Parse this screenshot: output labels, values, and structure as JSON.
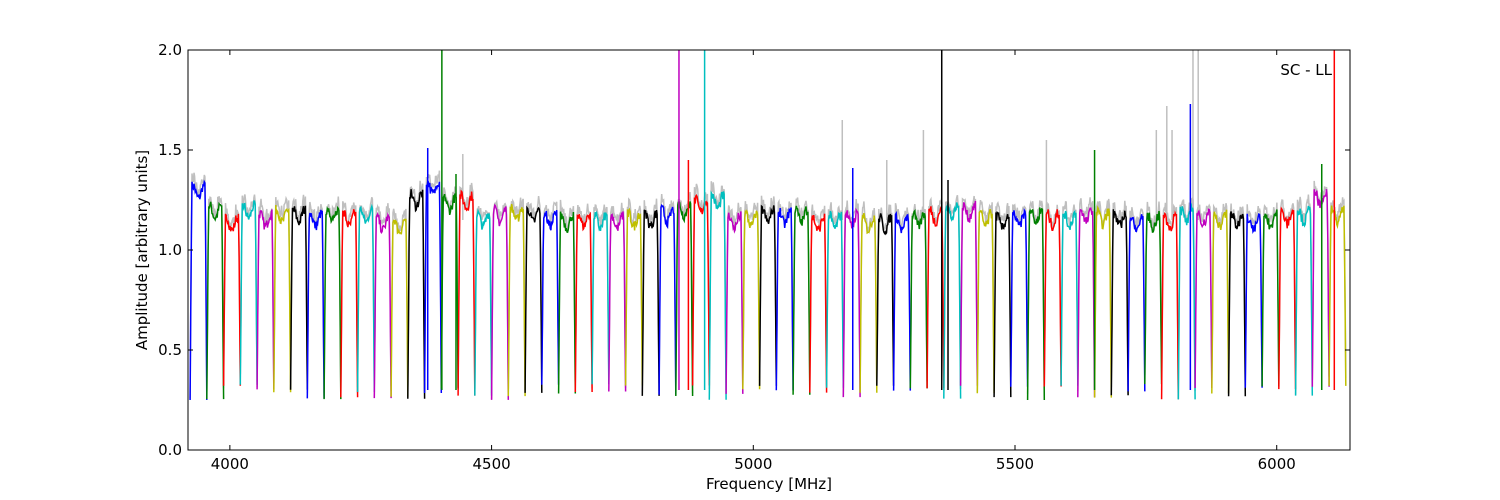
{
  "chart_data": {
    "type": "line",
    "title": "",
    "xlabel": "Frequency [MHz]",
    "ylabel": "Amplitude [arbitrary units]",
    "annotation": "SC - LL",
    "xlim": [
      3920,
      6140
    ],
    "ylim": [
      0.0,
      2.0
    ],
    "x_ticks": [
      4000,
      4500,
      5000,
      5500,
      6000
    ],
    "y_ticks": [
      0.0,
      0.5,
      1.0,
      1.5,
      2.0
    ],
    "y_tick_labels": [
      "0.0",
      "0.5",
      "1.0",
      "1.5",
      "2.0"
    ],
    "grid": false,
    "legend": "none",
    "raw_color": "#bfbfbf",
    "band_colors": [
      "#0000ff",
      "#008000",
      "#ff0000",
      "#00bfbf",
      "#bf00bf",
      "#bfbf00",
      "#000000"
    ],
    "band_width_mhz": 32,
    "band_centers_mhz": [
      3940,
      3972,
      4004,
      4036,
      4068,
      4100,
      4132,
      4164,
      4196,
      4228,
      4260,
      4292,
      4324,
      4356,
      4388,
      4420,
      4452,
      4484,
      4516,
      4548,
      4580,
      4612,
      4644,
      4676,
      4708,
      4740,
      4772,
      4804,
      4836,
      4868,
      4900,
      4932,
      4964,
      4996,
      5028,
      5060,
      5092,
      5124,
      5156,
      5188,
      5220,
      5252,
      5284,
      5316,
      5348,
      5380,
      5412,
      5444,
      5476,
      5508,
      5540,
      5572,
      5604,
      5636,
      5668,
      5700,
      5732,
      5764,
      5796,
      5828,
      5860,
      5892,
      5924,
      5956,
      5988,
      6020,
      6052,
      6084,
      6116
    ],
    "band_plateau": [
      1.32,
      1.22,
      1.16,
      1.22,
      1.18,
      1.2,
      1.2,
      1.18,
      1.2,
      1.18,
      1.2,
      1.16,
      1.15,
      1.28,
      1.34,
      1.26,
      1.27,
      1.18,
      1.2,
      1.21,
      1.2,
      1.18,
      1.17,
      1.18,
      1.17,
      1.17,
      1.18,
      1.18,
      1.2,
      1.23,
      1.25,
      1.27,
      1.17,
      1.18,
      1.2,
      1.19,
      1.2,
      1.16,
      1.17,
      1.18,
      1.16,
      1.16,
      1.16,
      1.18,
      1.2,
      1.22,
      1.22,
      1.18,
      1.17,
      1.18,
      1.2,
      1.18,
      1.18,
      1.2,
      1.19,
      1.18,
      1.16,
      1.17,
      1.17,
      1.2,
      1.19,
      1.18,
      1.18,
      1.16,
      1.18,
      1.19,
      1.2,
      1.28,
      1.2
    ],
    "spikes": [
      {
        "x": 4405,
        "y": 2.0,
        "color": "#008000"
      },
      {
        "x": 4858,
        "y": 2.0,
        "color": "#bf00bf"
      },
      {
        "x": 4907,
        "y": 2.0,
        "color": "#00bfbf"
      },
      {
        "x": 5360,
        "y": 2.0,
        "color": "#000000"
      },
      {
        "x": 6110,
        "y": 2.0,
        "color": "#ff0000"
      },
      {
        "x": 5835,
        "y": 1.73,
        "color": "#0000ff"
      },
      {
        "x": 4378,
        "y": 1.51,
        "color": "#0000ff"
      },
      {
        "x": 4876,
        "y": 1.45,
        "color": "#ff0000"
      },
      {
        "x": 5652,
        "y": 1.5,
        "color": "#008000"
      },
      {
        "x": 5190,
        "y": 1.41,
        "color": "#0000ff"
      },
      {
        "x": 6086,
        "y": 1.43,
        "color": "#008000"
      },
      {
        "x": 4432,
        "y": 1.38,
        "color": "#008000"
      },
      {
        "x": 5372,
        "y": 1.35,
        "color": "#000000"
      }
    ],
    "raw_spikes": [
      {
        "x": 5170,
        "y": 1.65
      },
      {
        "x": 5325,
        "y": 1.6
      },
      {
        "x": 5560,
        "y": 1.55
      },
      {
        "x": 5770,
        "y": 1.6
      },
      {
        "x": 5790,
        "y": 1.72
      },
      {
        "x": 5800,
        "y": 1.6
      },
      {
        "x": 5840,
        "y": 2.0
      },
      {
        "x": 5850,
        "y": 2.0
      },
      {
        "x": 5255,
        "y": 1.45
      },
      {
        "x": 4445,
        "y": 1.48
      }
    ]
  }
}
